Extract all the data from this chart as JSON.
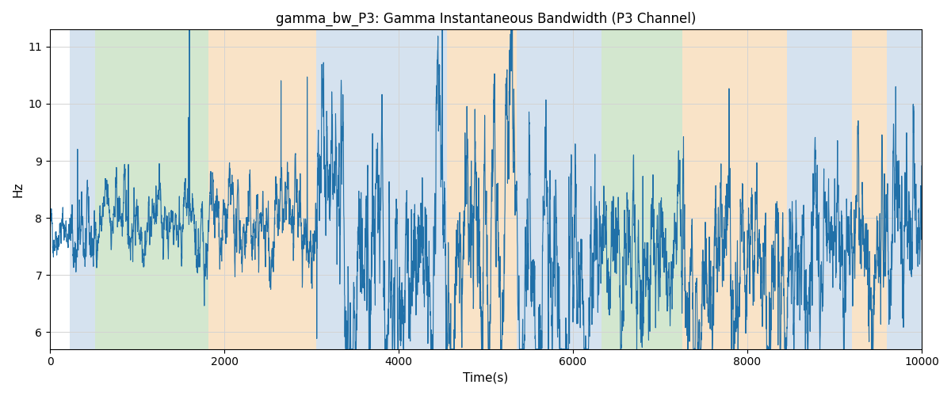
{
  "title": "gamma_bw_P3: Gamma Instantaneous Bandwidth (P3 Channel)",
  "xlabel": "Time(s)",
  "ylabel": "Hz",
  "xlim": [
    0,
    10000
  ],
  "ylim": [
    5.7,
    11.3
  ],
  "line_color": "#2070a8",
  "line_width": 0.8,
  "figsize": [
    12,
    5
  ],
  "dpi": 100,
  "regions": [
    {
      "xmin": 230,
      "xmax": 520,
      "color": "#adc6e0",
      "alpha": 0.5
    },
    {
      "xmin": 520,
      "xmax": 1820,
      "color": "#a8d0a0",
      "alpha": 0.5
    },
    {
      "xmin": 1820,
      "xmax": 3050,
      "color": "#f5c990",
      "alpha": 0.5
    },
    {
      "xmin": 3050,
      "xmax": 3750,
      "color": "#adc6e0",
      "alpha": 0.5
    },
    {
      "xmin": 3750,
      "xmax": 4550,
      "color": "#adc6e0",
      "alpha": 0.5
    },
    {
      "xmin": 4550,
      "xmax": 5350,
      "color": "#f5c990",
      "alpha": 0.5
    },
    {
      "xmin": 5350,
      "xmax": 5900,
      "color": "#adc6e0",
      "alpha": 0.5
    },
    {
      "xmin": 5900,
      "xmax": 6100,
      "color": "#adc6e0",
      "alpha": 0.5
    },
    {
      "xmin": 6100,
      "xmax": 6330,
      "color": "#adc6e0",
      "alpha": 0.5
    },
    {
      "xmin": 6330,
      "xmax": 7250,
      "color": "#a8d0a0",
      "alpha": 0.5
    },
    {
      "xmin": 7250,
      "xmax": 7750,
      "color": "#f5c990",
      "alpha": 0.5
    },
    {
      "xmin": 7750,
      "xmax": 8450,
      "color": "#f5c990",
      "alpha": 0.5
    },
    {
      "xmin": 8450,
      "xmax": 9200,
      "color": "#adc6e0",
      "alpha": 0.5
    },
    {
      "xmin": 9200,
      "xmax": 9600,
      "color": "#f5c990",
      "alpha": 0.5
    },
    {
      "xmin": 9600,
      "xmax": 10100,
      "color": "#adc6e0",
      "alpha": 0.5
    }
  ],
  "xticks": [
    0,
    2000,
    4000,
    6000,
    8000,
    10000
  ],
  "yticks": [
    6,
    7,
    8,
    9,
    10,
    11
  ],
  "seed": 42,
  "n_points": 5000
}
